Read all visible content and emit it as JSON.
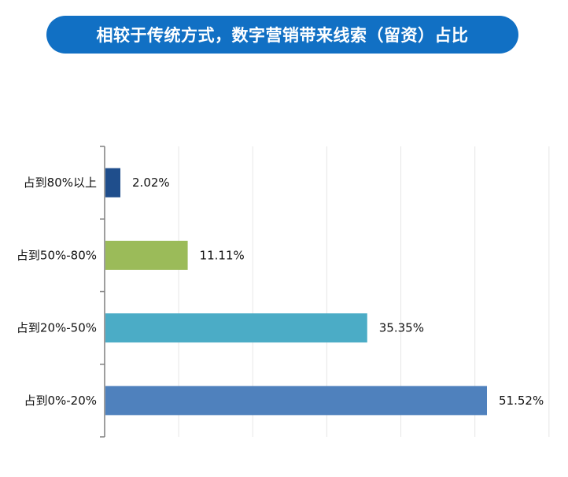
{
  "title": "相较于传统方式，数字营销带来线索（留资）占比",
  "chart_data": {
    "type": "bar",
    "orientation": "horizontal",
    "categories": [
      "占到80%以上",
      "占到50%-80%",
      "占到20%-50%",
      "占到0%-20%"
    ],
    "values": [
      2.02,
      11.11,
      35.35,
      51.52
    ],
    "value_labels": [
      "2.02%",
      "11.11%",
      "35.35%",
      "51.52%"
    ],
    "colors": [
      "#1f4e8c",
      "#9bbb59",
      "#4bacc6",
      "#4f81bd"
    ],
    "xlim": [
      0,
      60
    ],
    "grid": true,
    "legend": "none"
  }
}
